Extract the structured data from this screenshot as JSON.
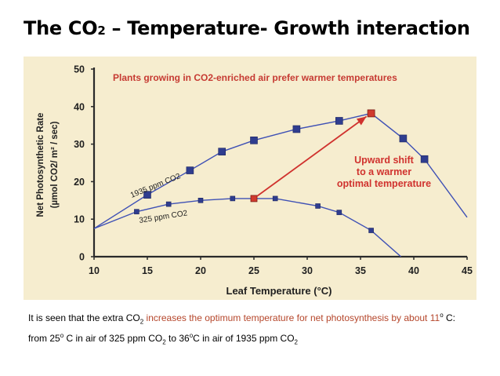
{
  "slide": {
    "title": {
      "pre": "The CO",
      "sub": "2",
      "post": " – Temperature- Growth interaction"
    },
    "caption": {
      "p1": "It is seen that the extra CO",
      "p1_sub": "2",
      "p2": " increases the optimum temperature for net photosynthesis by about 11",
      "p2_sup": "o",
      "p3": " C: from 25",
      "p3_sup": "o",
      "p4": " C in air of 325 ppm CO",
      "p4_sub": "2",
      "p5": " to 36",
      "p5_sup": "o",
      "p6": "C in air of 1935 ppm CO",
      "p6_sub": "2"
    },
    "colors": {
      "caption_highlight": "#b5462b"
    }
  },
  "chart_data": {
    "type": "line",
    "title": "Plants growing in CO2-enriched air prefer warmer temperatures",
    "xlabel": "Leaf Temperature (°C)",
    "ylabel_line1": "Net Photosynthetic Rate",
    "ylabel_line2": "(µmol CO2/ m² / sec)",
    "xlim": [
      10,
      45
    ],
    "ylim": [
      0,
      50
    ],
    "xticks": [
      10,
      15,
      20,
      25,
      30,
      35,
      40,
      45
    ],
    "yticks": [
      0,
      10,
      20,
      30,
      40,
      50
    ],
    "grid": false,
    "series": [
      {
        "name": "1935 ppm CO2",
        "color": "#3f51b5",
        "line": {
          "x": [
            10,
            15,
            19,
            22,
            25,
            29,
            33,
            36,
            39,
            41,
            45
          ],
          "y": [
            7.5,
            16.5,
            23,
            28,
            31,
            34,
            36.2,
            38.2,
            31.5,
            26,
            10.5
          ]
        },
        "markers": {
          "x": [
            15,
            19,
            22,
            25,
            29,
            33,
            39,
            41
          ],
          "y": [
            16.5,
            23,
            28,
            31,
            34,
            36.2,
            31.5,
            26
          ]
        },
        "highlight": {
          "x": 36,
          "y": 38.2
        }
      },
      {
        "name": "325 ppm CO2",
        "color": "#3f51b5",
        "line": {
          "x": [
            10,
            14,
            17,
            20,
            23,
            25,
            27,
            31,
            33,
            36,
            38.8
          ],
          "y": [
            7.5,
            12,
            14,
            15,
            15.5,
            15.5,
            15.5,
            13.5,
            11.8,
            7,
            0
          ]
        },
        "markers": {
          "x": [
            14,
            17,
            20,
            23,
            27,
            31,
            33,
            36
          ],
          "y": [
            12,
            14,
            15,
            15.5,
            15.5,
            13.5,
            11.8,
            7
          ]
        },
        "highlight": {
          "x": 25,
          "y": 15.5
        }
      }
    ],
    "annotation": {
      "lines": [
        "Upward shift",
        "to a warmer",
        "optimal temperature"
      ],
      "color": "#d0322e",
      "arrow_from": {
        "x": 25,
        "y": 15.5
      },
      "arrow_to": {
        "x": 36,
        "y": 38.2
      }
    },
    "colors": {
      "background": "#f6edcf",
      "axis": "#2a2a2a",
      "title_text": "#c63a32",
      "highlight_marker": "#d03a2e"
    }
  }
}
